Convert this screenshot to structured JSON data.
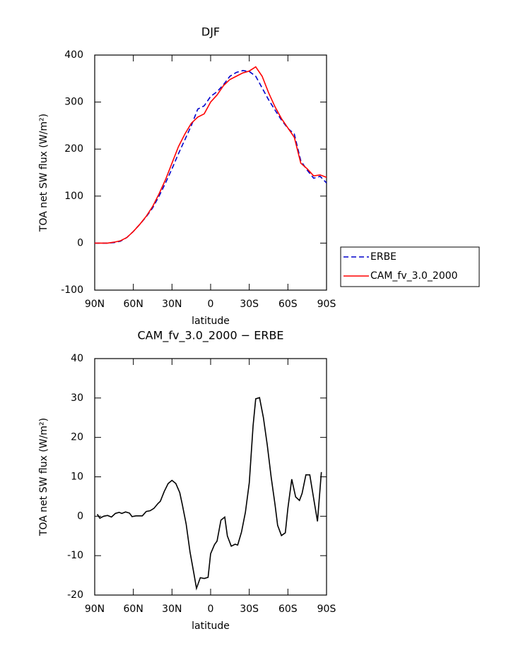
{
  "chart_data": [
    {
      "type": "line",
      "title": "DJF",
      "xlabel": "latitude",
      "ylabel": "TOA net SW flux (W/m²)",
      "x": [
        90,
        85,
        80,
        75,
        70,
        65,
        60,
        55,
        50,
        45,
        40,
        35,
        30,
        25,
        20,
        15,
        10,
        5,
        0,
        -5,
        -10,
        -15,
        -20,
        -25,
        -30,
        -35,
        -40,
        -45,
        -50,
        -55,
        -60,
        -65,
        -70,
        -75,
        -80,
        -85,
        -90
      ],
      "series": [
        {
          "name": "ERBE",
          "color": "#0000cc",
          "linestyle": "dashed",
          "values": [
            0,
            0,
            0,
            1,
            4,
            12,
            25,
            40,
            56,
            75,
            100,
            128,
            158,
            190,
            220,
            250,
            285,
            292,
            312,
            322,
            337,
            355,
            363,
            367,
            365,
            355,
            330,
            305,
            283,
            262,
            244,
            232,
            175,
            155,
            138,
            142,
            128
          ]
        },
        {
          "name": "CAM_fv_3.0_2000",
          "color": "#ff0000",
          "linestyle": "solid",
          "values": [
            0,
            0,
            0,
            2,
            5,
            12,
            25,
            40,
            57,
            78,
            105,
            135,
            170,
            205,
            232,
            255,
            268,
            275,
            300,
            315,
            335,
            348,
            355,
            362,
            366,
            375,
            355,
            320,
            290,
            265,
            245,
            225,
            170,
            158,
            143,
            145,
            140
          ]
        }
      ],
      "xlim": [
        90,
        -90
      ],
      "xticks": [
        {
          "value": 90,
          "label": "90N"
        },
        {
          "value": 60,
          "label": "60N"
        },
        {
          "value": 30,
          "label": "30N"
        },
        0,
        {
          "value": -30,
          "label": "30S"
        },
        {
          "value": -60,
          "label": "60S"
        },
        {
          "value": -90,
          "label": "90S"
        }
      ],
      "ylim": [
        -100,
        400
      ],
      "yticks": [
        -100,
        0,
        100,
        200,
        300,
        400
      ],
      "legend": "right"
    },
    {
      "type": "line",
      "title": "CAM_fv_3.0_2000 − ERBE",
      "xlabel": "latitude",
      "ylabel": "TOA net SW flux (W/m²)",
      "x": [
        88,
        86,
        83,
        80,
        77,
        74,
        71,
        69,
        66,
        63,
        61,
        58,
        55,
        53,
        50,
        47,
        44,
        41,
        39,
        36,
        33,
        30,
        27,
        24,
        22,
        19,
        16,
        13,
        11,
        8,
        5,
        2,
        0,
        -3,
        -5,
        -8,
        -11,
        -13,
        -16,
        -19,
        -21,
        -24,
        -27,
        -30,
        -33,
        -35,
        -38,
        -41,
        -44,
        -47,
        -50,
        -52,
        -55,
        -58,
        -60,
        -63,
        -66,
        -69,
        -71,
        -74,
        -77,
        -80,
        -83,
        -86
      ],
      "series": [
        {
          "name": null,
          "color": "#000000",
          "linestyle": "solid",
          "values": [
            0.5,
            -0.5,
            0,
            0.2,
            -0.2,
            0.7,
            1,
            0.7,
            1.1,
            0.8,
            -0.1,
            0.1,
            0.1,
            0.1,
            1.2,
            1.4,
            2.0,
            3.2,
            3.8,
            6.3,
            8.3,
            9.1,
            8.3,
            6.0,
            3.0,
            -2,
            -9,
            -14.5,
            -18.3,
            -15.6,
            -15.8,
            -15.5,
            -9.5,
            -7.2,
            -6.3,
            -1,
            -0.2,
            -5,
            -7.6,
            -7.1,
            -7.3,
            -4,
            1,
            8.5,
            23,
            29.8,
            30.1,
            25,
            18,
            10,
            3,
            -2.3,
            -4.9,
            -4.2,
            2,
            9.4,
            4.9,
            4,
            5.8,
            10.5,
            10.5,
            4.5,
            -1.3,
            11.2
          ]
        }
      ],
      "xlim": [
        90,
        -90
      ],
      "xticks": [
        {
          "value": 90,
          "label": "90N"
        },
        {
          "value": 60,
          "label": "60N"
        },
        {
          "value": 30,
          "label": "30N"
        },
        0,
        {
          "value": -30,
          "label": "30S"
        },
        {
          "value": -60,
          "label": "60S"
        },
        {
          "value": -90,
          "label": "90S"
        }
      ],
      "ylim": [
        -20,
        40
      ],
      "yticks": [
        -20,
        -10,
        0,
        10,
        20,
        30,
        40
      ]
    }
  ]
}
